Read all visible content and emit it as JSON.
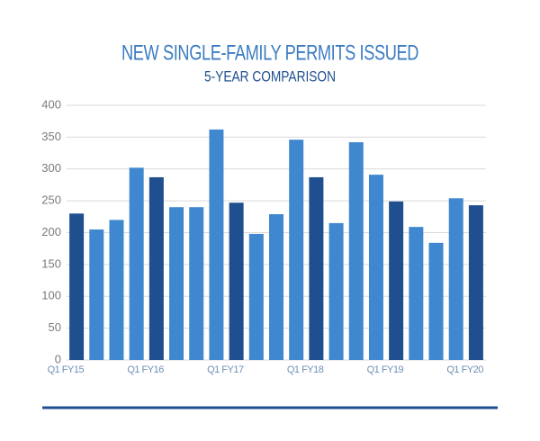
{
  "chart_data": {
    "type": "bar",
    "title": "NEW SINGLE-FAMILY PERMITS ISSUED",
    "subtitle": "5-YEAR COMPARISON",
    "categories": [
      "Q1 FY15",
      null,
      null,
      null,
      "Q1 FY16",
      null,
      null,
      null,
      "Q1 FY17",
      null,
      null,
      null,
      "Q1 FY18",
      null,
      null,
      null,
      "Q1 FY19",
      null,
      null,
      null,
      "Q1 FY20"
    ],
    "values": [
      230,
      205,
      220,
      302,
      287,
      240,
      240,
      362,
      247,
      198,
      229,
      346,
      287,
      215,
      342,
      291,
      249,
      209,
      184,
      254,
      243
    ],
    "colors": [
      "#1f4f8f",
      "#3f88cf",
      "#3f88cf",
      "#3f88cf",
      "#1f4f8f",
      "#3f88cf",
      "#3f88cf",
      "#3f88cf",
      "#1f4f8f",
      "#3f88cf",
      "#3f88cf",
      "#3f88cf",
      "#1f4f8f",
      "#3f88cf",
      "#3f88cf",
      "#3f88cf",
      "#1f4f8f",
      "#3f88cf",
      "#3f88cf",
      "#3f88cf",
      "#1f4f8f"
    ],
    "ylim": [
      0,
      400
    ],
    "yticks": [
      0,
      50,
      100,
      150,
      200,
      250,
      300,
      350,
      400
    ],
    "grid": true
  }
}
